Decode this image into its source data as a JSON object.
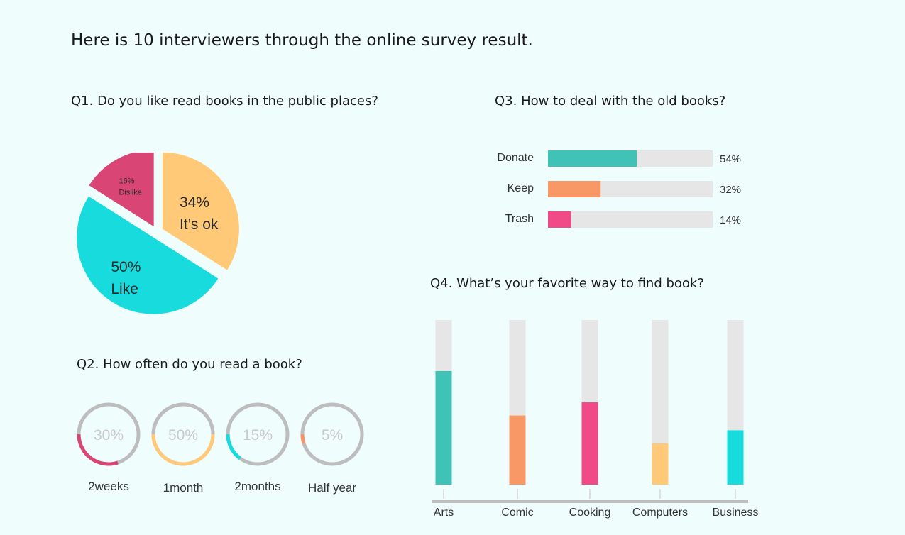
{
  "page_title": "Here is 10 interviewers through the online survey result.",
  "q1": {
    "title": "Q1. Do you like read books in the public places?"
  },
  "q2": {
    "title": "Q2. How often do you read a book?"
  },
  "q3": {
    "title": "Q3. How to deal with the old books?"
  },
  "q4": {
    "title": "Q4. What’s your favorite way to find book?"
  },
  "chart_data": [
    {
      "id": "q1",
      "type": "pie",
      "slices": [
        {
          "pct_label": "34%",
          "label": "It’s ok",
          "value": 34,
          "color": "#ffc978"
        },
        {
          "pct_label": "50%",
          "label": "Like",
          "value": 50,
          "color": "#17dbdc"
        },
        {
          "pct_label": "16%",
          "label": "Dislike",
          "value": 16,
          "color": "#d94574"
        }
      ]
    },
    {
      "id": "q2",
      "type": "donut",
      "items": [
        {
          "pct_label": "30%",
          "value": 30,
          "label": "2weeks",
          "color": "#d94574"
        },
        {
          "pct_label": "50%",
          "value": 50,
          "label": "1month",
          "color": "#ffc978"
        },
        {
          "pct_label": "15%",
          "value": 15,
          "label": "2months",
          "color": "#17dbdc"
        },
        {
          "pct_label": "5%",
          "value": 5,
          "label": "Half year",
          "color": "#f5936a"
        }
      ],
      "track_color": "#bdbdbd"
    },
    {
      "id": "q3",
      "type": "bar",
      "orientation": "horizontal",
      "categories": [
        "Donate",
        "Keep",
        "Trash"
      ],
      "values": [
        54,
        32,
        14
      ],
      "value_labels": [
        "54%",
        "32%",
        "14%"
      ],
      "colors": [
        "#40c2b6",
        "#f79866",
        "#f04a87"
      ],
      "track_color": "#e6e6e6",
      "xlim": [
        0,
        100
      ]
    },
    {
      "id": "q4",
      "type": "bar",
      "orientation": "vertical",
      "categories": [
        "Arts",
        "Comic",
        "Cooking",
        "Computers",
        "Business"
      ],
      "values": [
        69,
        42,
        50,
        25,
        33
      ],
      "colors": [
        "#40c2b6",
        "#f79866",
        "#f04a87",
        "#ffc978",
        "#17dbdc"
      ],
      "track_color": "#e6e6e6",
      "ylim": [
        0,
        100
      ]
    }
  ]
}
